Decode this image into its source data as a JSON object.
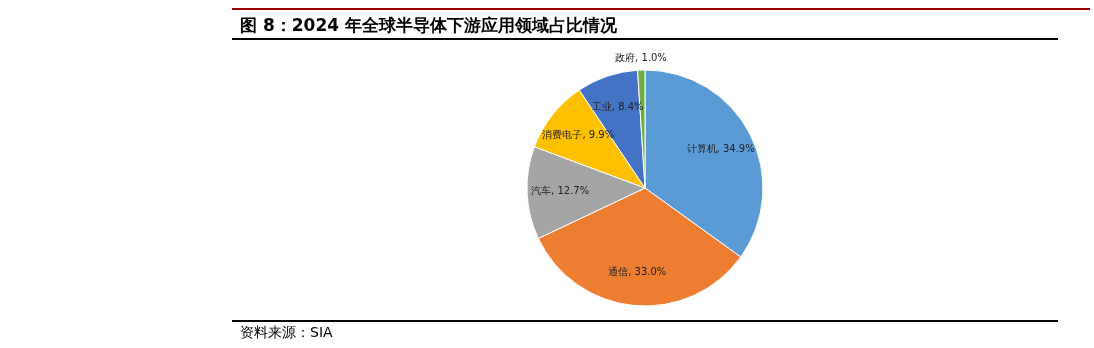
{
  "chart_data": {
    "type": "pie",
    "title": "图 8：2024 年全球半导体下游应用领域占比情况",
    "categories": [
      "计算机",
      "通信",
      "汽车",
      "消费电子",
      "工业",
      "政府"
    ],
    "values": [
      34.9,
      33.0,
      12.7,
      9.9,
      8.4,
      1.0
    ],
    "value_labels": [
      "34.9%",
      "33.0%",
      "12.7%",
      "9.9%",
      "8.4%",
      "1.0%"
    ],
    "colors": [
      "#5b9bd5",
      "#ed7d31",
      "#a5a5a5",
      "#ffc000",
      "#4472c4",
      "#70ad47"
    ],
    "legend": false,
    "annotations": [
      "资料来源：SIA"
    ]
  }
}
